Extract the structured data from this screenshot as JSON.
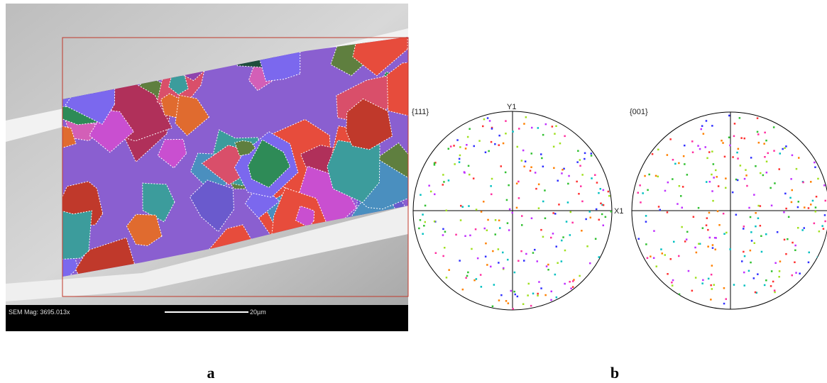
{
  "figure": {
    "panel_a": {
      "magnification": "SEM Mag: 3695.013x",
      "scale_bar": "20µm",
      "caption": "a"
    },
    "panel_b": {
      "left_pole": "{111}",
      "y_axis": "Y1",
      "x_axis": "X1",
      "right_pole": "{001}",
      "caption": "b"
    }
  }
}
